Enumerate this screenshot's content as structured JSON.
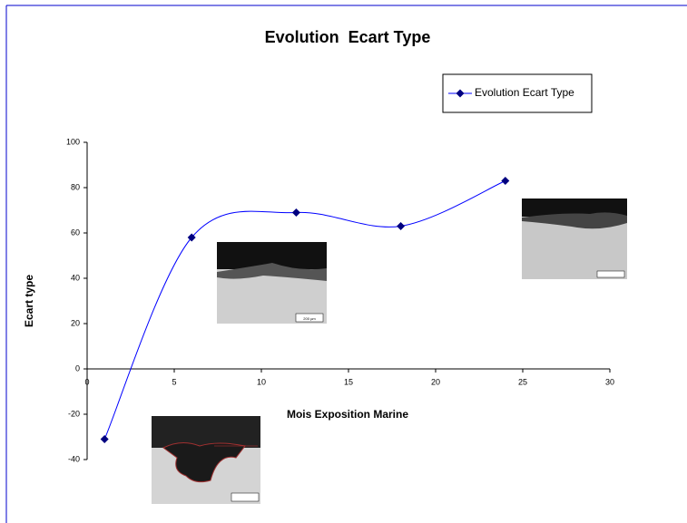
{
  "chart_data": {
    "type": "line",
    "title": "Evolution  Ecart Type",
    "x_label": "Mois Exposition Marine",
    "y_label": "Ecart type",
    "x": [
      1,
      6,
      12,
      18,
      24
    ],
    "series": [
      {
        "name": "Evolution Ecart Type",
        "color": "#000080",
        "line_color": "#0000ff",
        "values": [
          -31,
          58,
          69,
          63,
          83
        ]
      }
    ],
    "xlim": [
      0,
      30
    ],
    "xticks": [
      0,
      5,
      10,
      15,
      20,
      25,
      30
    ],
    "ylim": [
      -40,
      100
    ],
    "yticks": [
      -40,
      -20,
      0,
      20,
      40,
      60,
      80,
      100
    ],
    "smooth": true,
    "legend": "top-right",
    "image_labels": [
      "200 µm"
    ]
  }
}
